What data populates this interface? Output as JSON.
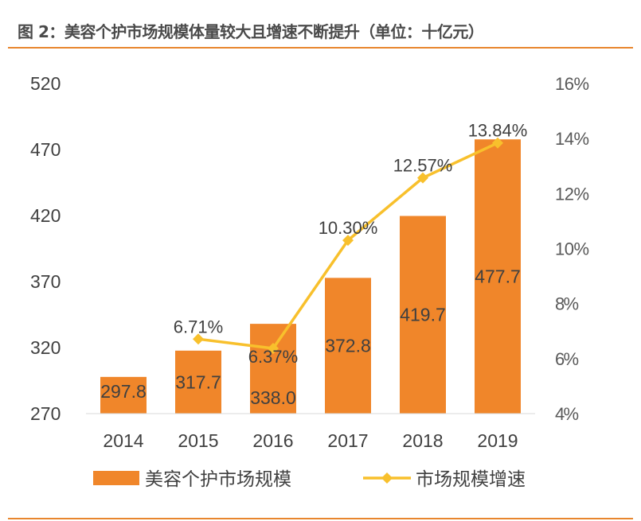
{
  "title": "图 2：美容个护市场规模体量较大且增速不断提升（单位：十亿元）",
  "colors": {
    "bar": "#F0862A",
    "line": "#F8C02C",
    "rule": "#E8862E",
    "text": "#404040",
    "title": "#4a4a4a"
  },
  "chart_data": {
    "type": "bar+line",
    "title": "图 2：美容个护市场规模体量较大且增速不断提升（单位：十亿元）",
    "categories": [
      "2014",
      "2015",
      "2016",
      "2017",
      "2018",
      "2019"
    ],
    "series": [
      {
        "name": "美容个护市场规模",
        "type": "bar",
        "axis": "left",
        "values": [
          297.8,
          317.7,
          338.0,
          372.8,
          419.7,
          477.7
        ],
        "labels": [
          "297.8",
          "317.7",
          "338.0",
          "372.8",
          "419.7",
          "477.7"
        ]
      },
      {
        "name": "市场规模增速",
        "type": "line",
        "axis": "right",
        "values": [
          null,
          6.71,
          6.37,
          10.3,
          12.57,
          13.84
        ],
        "labels": [
          "",
          "6.71%",
          "6.37%",
          "10.30%",
          "12.57%",
          "13.84%"
        ]
      }
    ],
    "left_axis": {
      "ylim": [
        270,
        520
      ],
      "ticks": [
        "270",
        "320",
        "370",
        "420",
        "470",
        "520"
      ]
    },
    "right_axis": {
      "ylim": [
        4,
        16
      ],
      "ticks": [
        "4%",
        "6%",
        "8%",
        "10%",
        "12%",
        "14%",
        "16%"
      ]
    },
    "grid": false,
    "legend": "bottom"
  }
}
